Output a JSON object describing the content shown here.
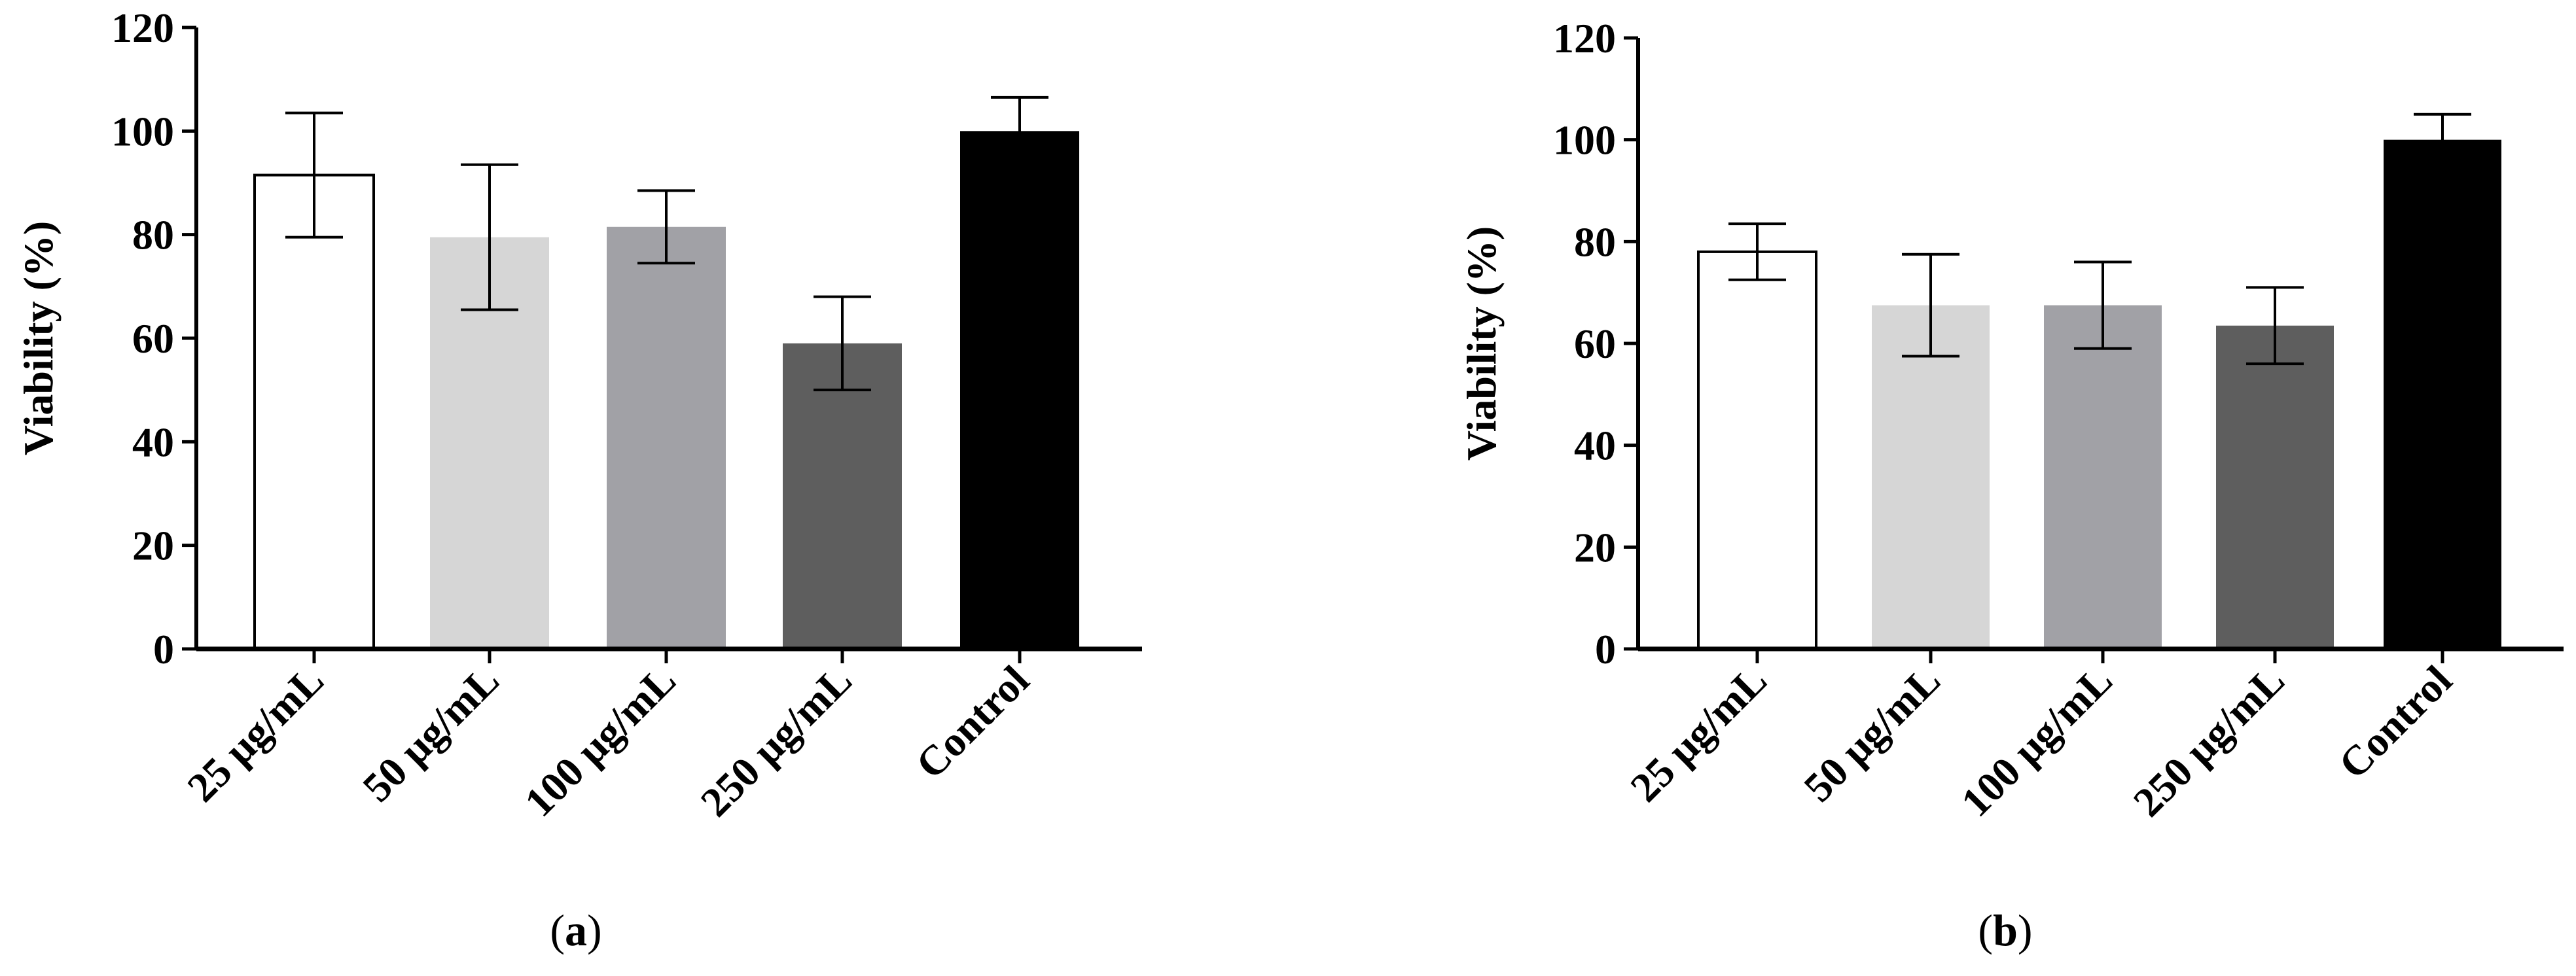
{
  "chart_data": [
    {
      "type": "bar",
      "panel_label": "a",
      "ylabel": "Viability (%)",
      "xlabel": "",
      "ylim": [
        0,
        120
      ],
      "yticks": [
        0,
        20,
        40,
        60,
        80,
        100,
        120
      ],
      "grid": false,
      "categories": [
        "25 μg/mL",
        "50 μg/mL",
        "100 μg/mL",
        "250 μg/mL",
        "Control"
      ],
      "values": [
        91.5,
        79.5,
        81.5,
        59,
        100
      ],
      "errors": [
        12,
        14,
        7,
        9,
        6.5
      ],
      "colors": [
        "#ffffff",
        "#d6d6d6",
        "#a1a1a6",
        "#5e5e5e",
        "#000000"
      ]
    },
    {
      "type": "bar",
      "panel_label": "b",
      "ylabel": "Viability (%)",
      "xlabel": "",
      "ylim": [
        0,
        120
      ],
      "yticks": [
        0,
        20,
        40,
        60,
        80,
        100,
        120
      ],
      "grid": false,
      "categories": [
        "25 μg/mL",
        "50 μg/mL",
        "100 μg/mL",
        "250 μg/mL",
        "Control"
      ],
      "values": [
        78,
        67.5,
        67.5,
        63.5,
        100
      ],
      "errors": [
        5.5,
        10,
        8.5,
        7.5,
        5
      ],
      "colors": [
        "#ffffff",
        "#d6d6d6",
        "#a1a1a6",
        "#5e5e5e",
        "#000000"
      ]
    }
  ]
}
